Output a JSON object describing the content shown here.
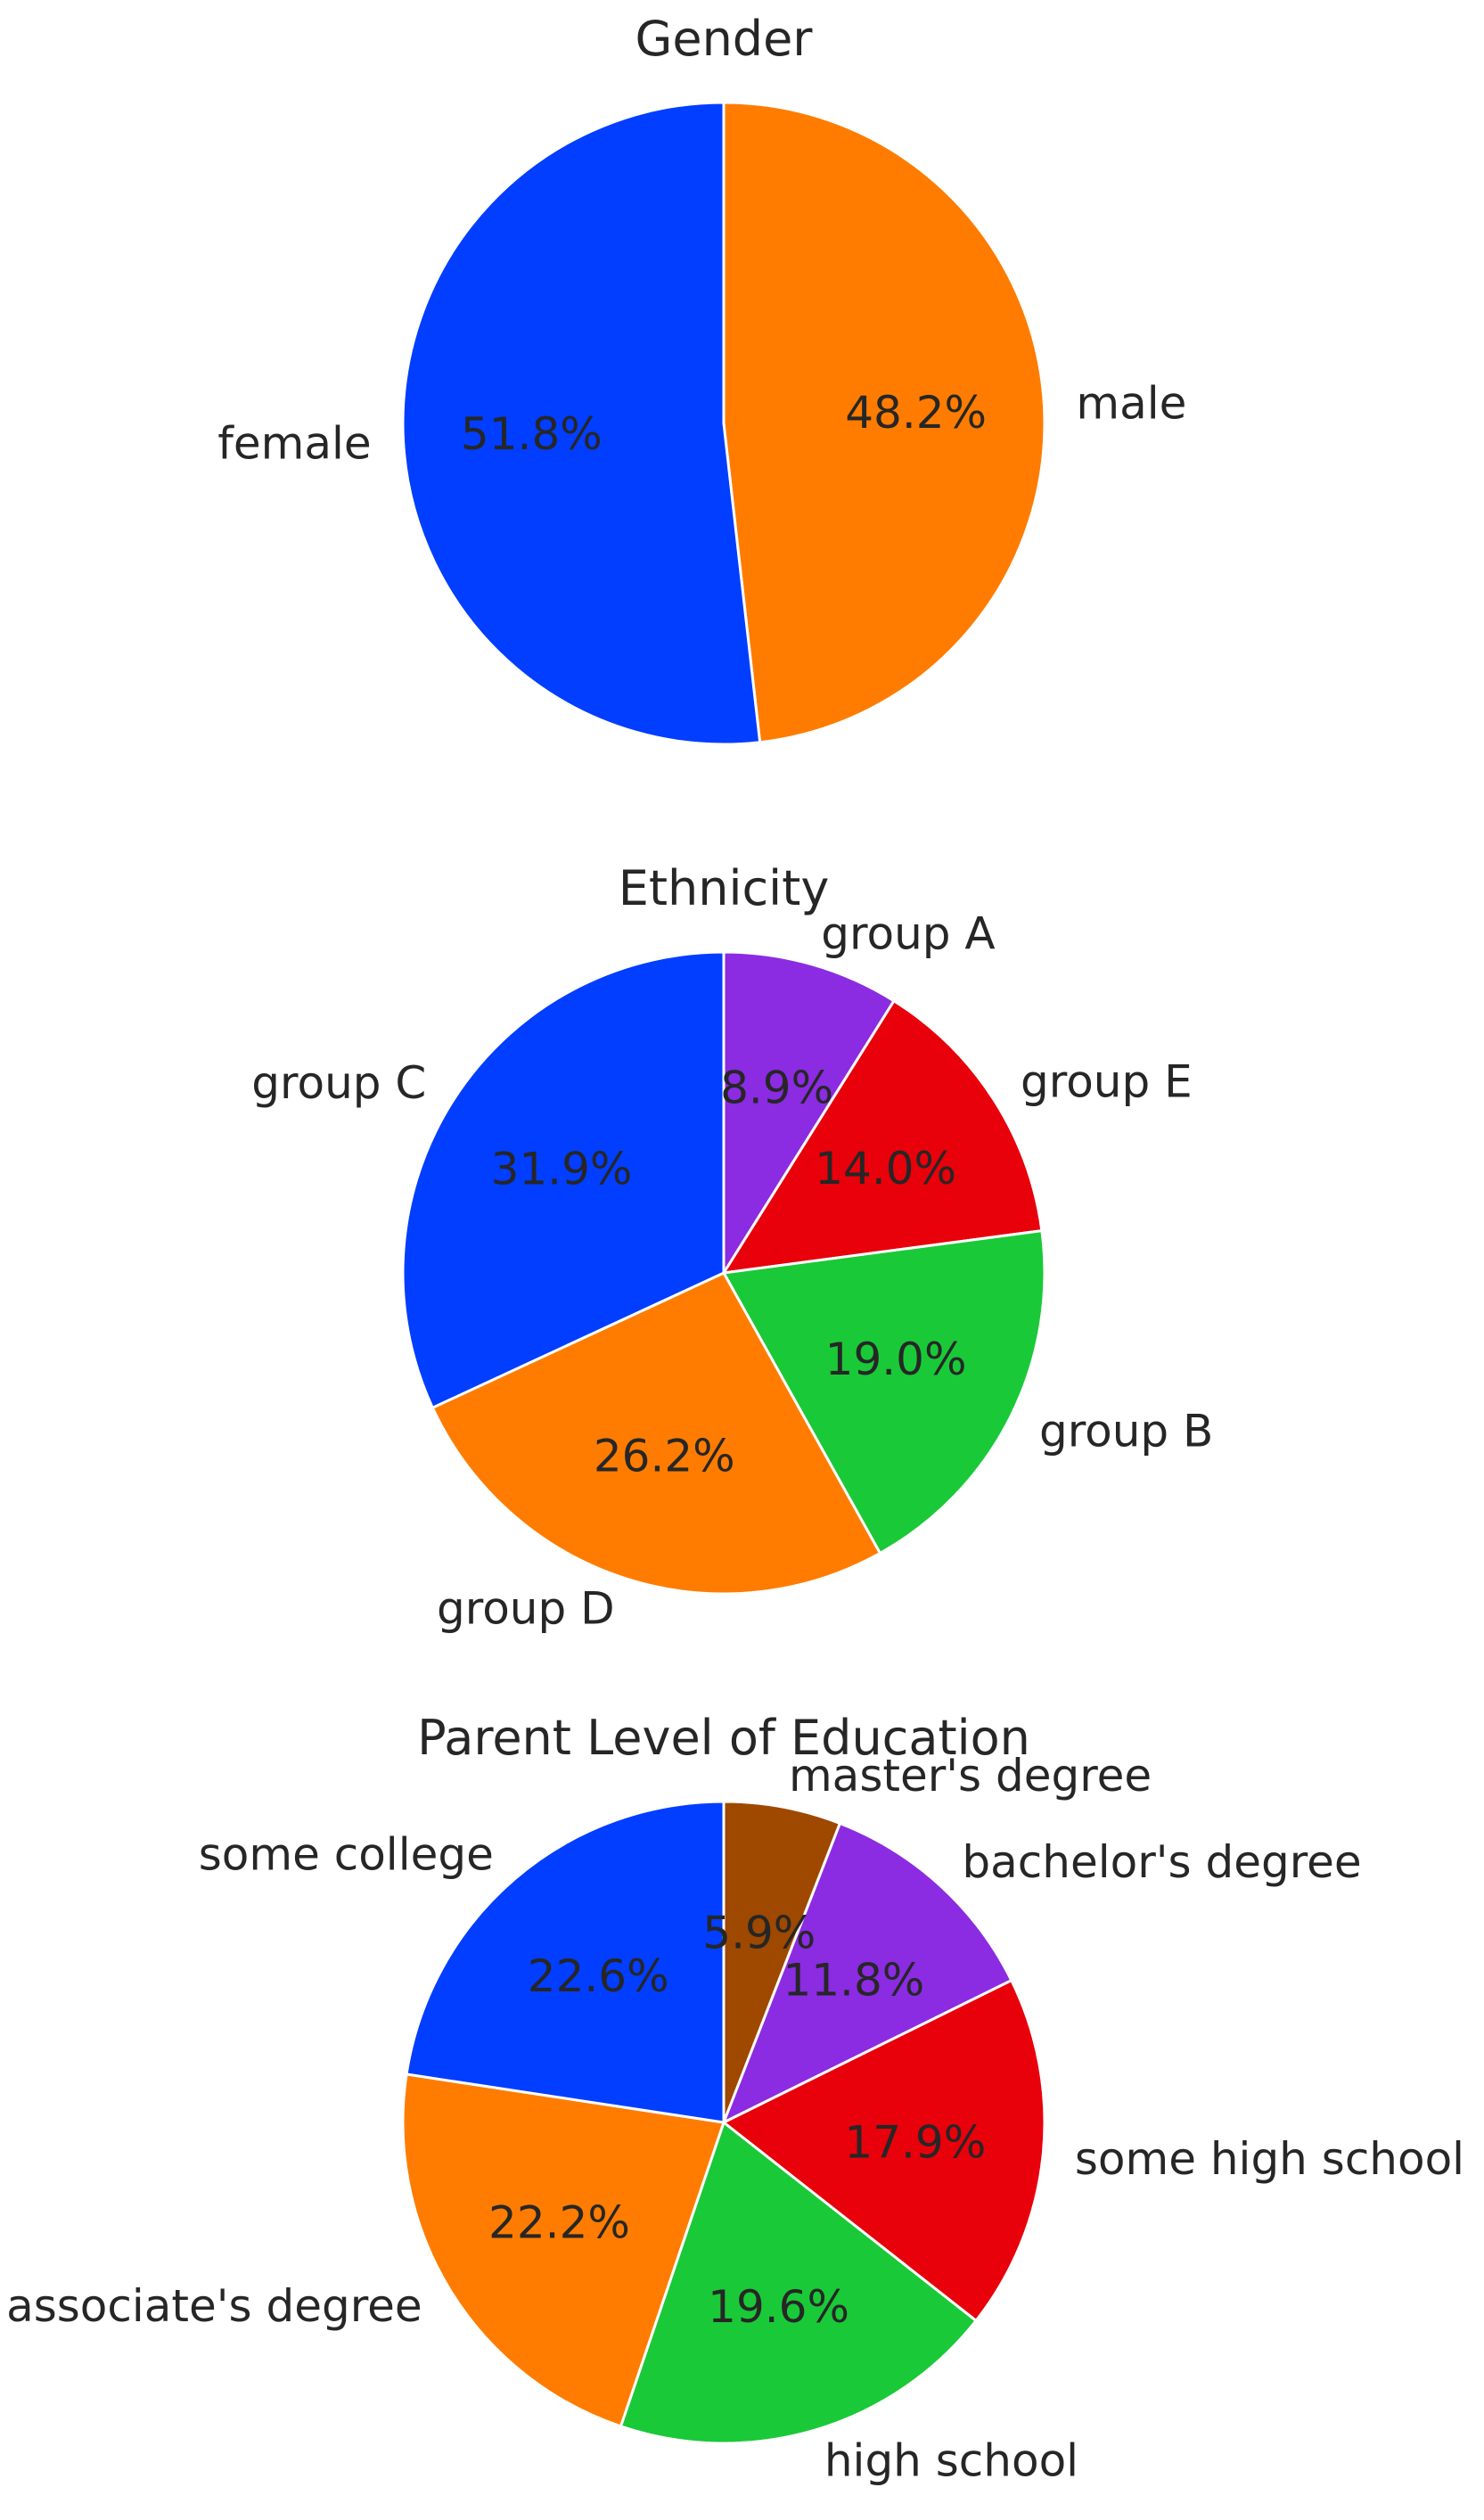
{
  "chart_data": [
    {
      "type": "pie",
      "title": "Gender",
      "start_angle_deg": 90,
      "direction": "clockwise",
      "slices": [
        {
          "label": "male",
          "value": 48.2,
          "pct_label": "48.2%",
          "color": "#ff7c00"
        },
        {
          "label": "female",
          "value": 51.8,
          "pct_label": "51.8%",
          "color": "#023eff"
        }
      ]
    },
    {
      "type": "pie",
      "title": "Ethnicity",
      "start_angle_deg": 90,
      "direction": "clockwise",
      "slices": [
        {
          "label": "group A",
          "value": 8.9,
          "pct_label": "8.9%",
          "color": "#8b2be2"
        },
        {
          "label": "group E",
          "value": 14.0,
          "pct_label": "14.0%",
          "color": "#e8000b"
        },
        {
          "label": "group B",
          "value": 19.0,
          "pct_label": "19.0%",
          "color": "#1ac938"
        },
        {
          "label": "group D",
          "value": 26.2,
          "pct_label": "26.2%",
          "color": "#ff7c00"
        },
        {
          "label": "group C",
          "value": 31.9,
          "pct_label": "31.9%",
          "color": "#023eff"
        }
      ]
    },
    {
      "type": "pie",
      "title": "Parent Level of Education",
      "start_angle_deg": 90,
      "direction": "clockwise",
      "slices": [
        {
          "label": "master's degree",
          "value": 5.9,
          "pct_label": "5.9%",
          "color": "#9f4800"
        },
        {
          "label": "bachelor's degree",
          "value": 11.8,
          "pct_label": "11.8%",
          "color": "#8b2be2"
        },
        {
          "label": "some high school",
          "value": 17.9,
          "pct_label": "17.9%",
          "color": "#e8000b"
        },
        {
          "label": "high school",
          "value": 19.6,
          "pct_label": "19.6%",
          "color": "#1ac938"
        },
        {
          "label": "associate's degree",
          "value": 22.2,
          "pct_label": "22.2%",
          "color": "#ff7c00"
        },
        {
          "label": "some college",
          "value": 22.6,
          "pct_label": "22.6%",
          "color": "#023eff"
        }
      ]
    }
  ]
}
